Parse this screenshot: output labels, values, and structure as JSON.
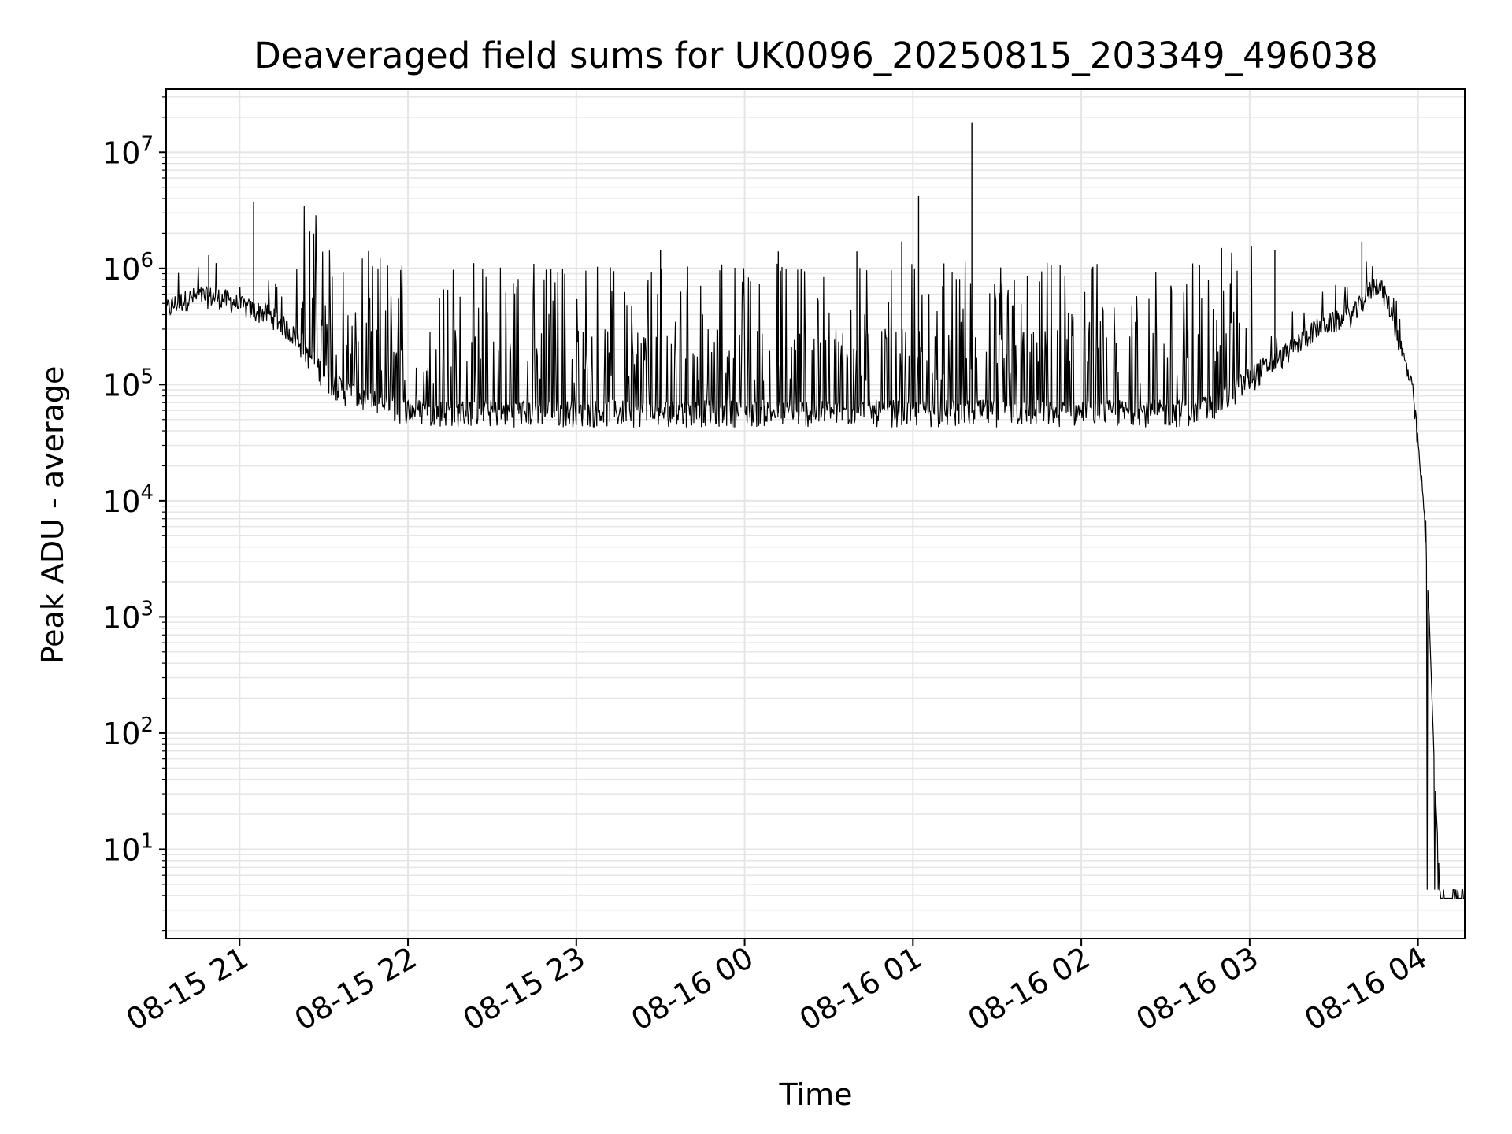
{
  "chart_data": {
    "type": "line",
    "title": "Deaveraged field sums for UK0096_20250815_203349_496038",
    "xlabel": "Time",
    "ylabel": "Peak ADU - average",
    "yscale": "log",
    "ylim": [
      1.7,
      35000000
    ],
    "xlim": [
      "2025-08-15 20:33:49",
      "2025-08-16 04:16:40"
    ],
    "x_ticks": [
      "2025-08-15 21:00",
      "2025-08-15 22:00",
      "2025-08-15 23:00",
      "2025-08-16 00:00",
      "2025-08-16 01:00",
      "2025-08-16 02:00",
      "2025-08-16 03:00",
      "2025-08-16 04:00"
    ],
    "x_tick_labels": [
      "08-15 21",
      "08-15 22",
      "08-15 23",
      "08-16 00",
      "08-16 01",
      "08-16 02",
      "08-16 03",
      "08-16 04"
    ],
    "y_ticks": [
      {
        "value": 10,
        "base": "10",
        "exp": "1"
      },
      {
        "value": 100,
        "base": "10",
        "exp": "2"
      },
      {
        "value": 1000,
        "base": "10",
        "exp": "3"
      },
      {
        "value": 10000,
        "base": "10",
        "exp": "4"
      },
      {
        "value": 100000,
        "base": "10",
        "exp": "5"
      },
      {
        "value": 1000000,
        "base": "10",
        "exp": "6"
      },
      {
        "value": 10000000,
        "base": "10",
        "exp": "7"
      }
    ],
    "grid": true,
    "minor_grid": true,
    "line_color": "#000000",
    "grid_color": "#e5e5e5",
    "series": [
      {
        "x": [
          "2025-08-15 20:33:49",
          "2025-08-15 20:38",
          "2025-08-15 20:42",
          "2025-08-15 20:46",
          "2025-08-15 20:50",
          "2025-08-15 20:54",
          "2025-08-15 20:58",
          "2025-08-15 21:02",
          "2025-08-15 21:06",
          "2025-08-15 21:10",
          "2025-08-15 21:14",
          "2025-08-15 21:18",
          "2025-08-15 21:22",
          "2025-08-15 21:26",
          "2025-08-15 21:30",
          "2025-08-15 21:34",
          "2025-08-15 21:38",
          "2025-08-15 21:42",
          "2025-08-15 21:46",
          "2025-08-15 21:50",
          "2025-08-15 21:54",
          "2025-08-15 21:58",
          "2025-08-15 22:02",
          "2025-08-15 22:06",
          "2025-08-15 22:10",
          "2025-08-15 22:14",
          "2025-08-15 22:18",
          "2025-08-15 22:22",
          "2025-08-15 22:26",
          "2025-08-15 22:30",
          "2025-08-15 22:34",
          "2025-08-15 22:38",
          "2025-08-15 22:42",
          "2025-08-15 22:46",
          "2025-08-15 22:50",
          "2025-08-15 22:54",
          "2025-08-15 22:58",
          "2025-08-15 23:02",
          "2025-08-15 23:06",
          "2025-08-15 23:10",
          "2025-08-15 23:14",
          "2025-08-15 23:18",
          "2025-08-15 23:22",
          "2025-08-15 23:26",
          "2025-08-15 23:30",
          "2025-08-15 23:34",
          "2025-08-15 23:38",
          "2025-08-15 23:42",
          "2025-08-15 23:46",
          "2025-08-15 23:50",
          "2025-08-15 23:54",
          "2025-08-15 23:58",
          "2025-08-16 00:02",
          "2025-08-16 00:06",
          "2025-08-16 00:10",
          "2025-08-16 00:14",
          "2025-08-16 00:18",
          "2025-08-16 00:22",
          "2025-08-16 00:26",
          "2025-08-16 00:30",
          "2025-08-16 00:34",
          "2025-08-16 00:38",
          "2025-08-16 00:42",
          "2025-08-16 00:46",
          "2025-08-16 00:50",
          "2025-08-16 00:54",
          "2025-08-16 00:58",
          "2025-08-16 01:02",
          "2025-08-16 01:06",
          "2025-08-16 01:10",
          "2025-08-16 01:14",
          "2025-08-16 01:18",
          "2025-08-16 01:22",
          "2025-08-16 01:26",
          "2025-08-16 01:30",
          "2025-08-16 01:34",
          "2025-08-16 01:38",
          "2025-08-16 01:42",
          "2025-08-16 01:46",
          "2025-08-16 01:50",
          "2025-08-16 01:54",
          "2025-08-16 01:58",
          "2025-08-16 02:02",
          "2025-08-16 02:06",
          "2025-08-16 02:10",
          "2025-08-16 02:14",
          "2025-08-16 02:18",
          "2025-08-16 02:22",
          "2025-08-16 02:26",
          "2025-08-16 02:30",
          "2025-08-16 02:34",
          "2025-08-16 02:38",
          "2025-08-16 02:42",
          "2025-08-16 02:46",
          "2025-08-16 02:50",
          "2025-08-16 02:54",
          "2025-08-16 02:58",
          "2025-08-16 03:02",
          "2025-08-16 03:06",
          "2025-08-16 03:10",
          "2025-08-16 03:14",
          "2025-08-16 03:18",
          "2025-08-16 03:22",
          "2025-08-16 03:26",
          "2025-08-16 03:30",
          "2025-08-16 03:34",
          "2025-08-16 03:38",
          "2025-08-16 03:42",
          "2025-08-16 03:46",
          "2025-08-16 03:50",
          "2025-08-16 03:54",
          "2025-08-16 03:58",
          "2025-08-16 04:00",
          "2025-08-16 04:02",
          "2025-08-16 04:04",
          "2025-08-16 04:06",
          "2025-08-16 04:08",
          "2025-08-16 04:12",
          "2025-08-16 04:16"
        ],
        "base": [
          430000,
          500000,
          540000,
          560000,
          560000,
          540000,
          500000,
          450000,
          420000,
          400000,
          340000,
          280000,
          220000,
          160000,
          120000,
          98000,
          85000,
          78000,
          72000,
          66000,
          62000,
          60000,
          59000,
          58000,
          57000,
          57000,
          57000,
          57000,
          57000,
          57000,
          57000,
          57000,
          57000,
          57000,
          57000,
          57000,
          57000,
          57000,
          57000,
          57000,
          57000,
          57000,
          57000,
          57000,
          57000,
          57000,
          57000,
          57000,
          57000,
          57000,
          57000,
          57000,
          57000,
          57000,
          57000,
          57000,
          57000,
          57000,
          57000,
          57000,
          57000,
          57000,
          57000,
          57000,
          57000,
          57000,
          57000,
          57000,
          57000,
          57000,
          57000,
          57000,
          57000,
          57000,
          57000,
          57000,
          57000,
          57000,
          57000,
          57000,
          57000,
          57000,
          57000,
          57000,
          57000,
          57000,
          57000,
          57000,
          57000,
          57000,
          57000,
          58000,
          60000,
          64000,
          72000,
          85000,
          100000,
          120000,
          140000,
          160000,
          190000,
          230000,
          280000,
          320000,
          340000,
          360000,
          420000,
          600000,
          750000,
          450000,
          200000,
          90000,
          30000,
          9000,
          1000,
          40,
          3.8,
          3.8,
          3.8
        ]
      }
    ],
    "spikes": [
      {
        "x": "2025-08-15 21:05",
        "y": 3700000
      },
      {
        "x": "2025-08-15 21:25",
        "y": 2100000
      },
      {
        "x": "2025-08-15 20:49",
        "y": 1300000
      },
      {
        "x": "2025-08-15 23:30",
        "y": 1450000
      },
      {
        "x": "2025-08-16 00:12",
        "y": 1400000
      },
      {
        "x": "2025-08-16 00:40",
        "y": 1400000
      },
      {
        "x": "2025-08-16 00:56",
        "y": 1700000
      },
      {
        "x": "2025-08-16 01:02",
        "y": 4200000
      },
      {
        "x": "2025-08-16 01:21",
        "y": 18000000
      },
      {
        "x": "2025-08-16 02:50",
        "y": 1500000
      },
      {
        "x": "2025-08-16 03:09",
        "y": 1450000
      },
      {
        "x": "2025-08-16 03:40",
        "y": 1700000
      }
    ]
  }
}
